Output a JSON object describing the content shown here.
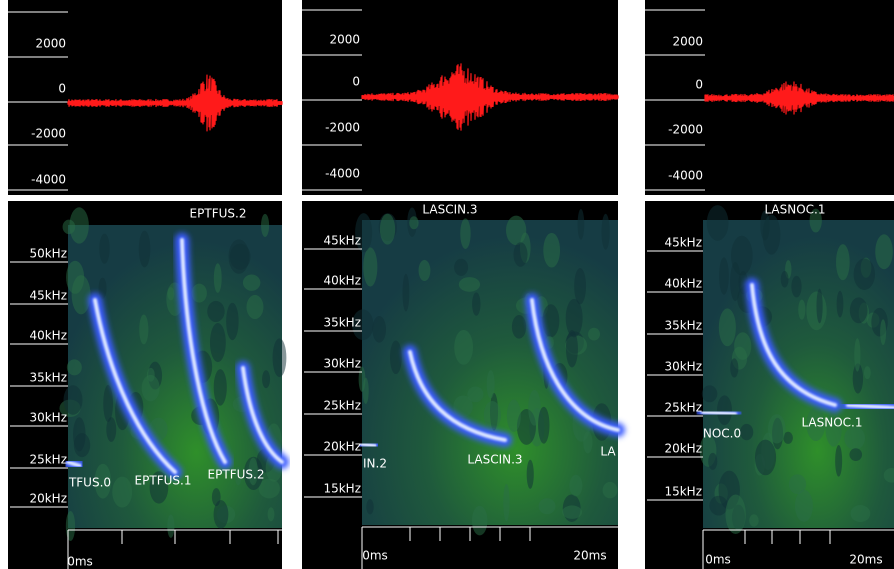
{
  "panels": [
    {
      "title": "EPTFUS.2",
      "amplitude_ticks": [
        "2000",
        "0",
        "-2000",
        "-4000"
      ],
      "frequency_ticks": [
        "50kHz",
        "45kHz",
        "40kHz",
        "35kHz",
        "30kHz",
        "25kHz",
        "20kHz"
      ],
      "call_labels": [
        "TFUS.0",
        "EPTFUS.1",
        "EPTFUS.2"
      ],
      "time_labels": [
        "0ms"
      ]
    },
    {
      "title": "LASCIN.3",
      "amplitude_ticks": [
        "2000",
        "0",
        "-2000",
        "-4000"
      ],
      "frequency_ticks": [
        "45kHz",
        "40kHz",
        "35kHz",
        "30kHz",
        "25kHz",
        "20kHz",
        "15kHz"
      ],
      "call_labels": [
        "IN.2",
        "LASCIN.3",
        "LA"
      ],
      "time_labels": [
        "0ms",
        "20ms"
      ]
    },
    {
      "title": "LASNOC.1",
      "amplitude_ticks": [
        "2000",
        "0",
        "-2000",
        "-4000"
      ],
      "frequency_ticks": [
        "45kHz",
        "40kHz",
        "35kHz",
        "30kHz",
        "25kHz",
        "20kHz",
        "15kHz"
      ],
      "call_labels": [
        "NOC.0",
        "LASNOC.1"
      ],
      "time_labels": [
        "0ms",
        "20ms"
      ]
    }
  ]
}
